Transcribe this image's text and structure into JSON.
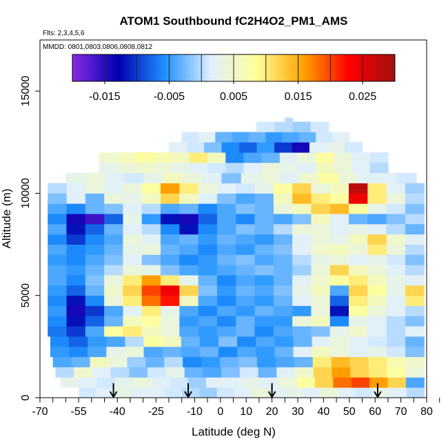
{
  "chart_data": {
    "type": "heatmap",
    "title": "ATOM1 Southbound fC2H4O2_PM1_AMS",
    "flights_label": "Flts: 2,3,4,5,6",
    "dates_label": "MMDD: 0801,0803,0806,0808,0812",
    "xlabel": "Latitude (deg N)",
    "ylabel": "Altitude (m)",
    "xlim": [
      -70,
      80
    ],
    "ylim": [
      0,
      17500
    ],
    "x_ticks": [
      -70,
      -55,
      -40,
      -25,
      -10,
      0,
      10,
      20,
      30,
      40,
      50,
      60,
      70,
      80
    ],
    "x_tick_labels": [
      "-70",
      "-55",
      "-40",
      "-25",
      "-10",
      "0",
      "10",
      "20",
      "30",
      "40",
      "50",
      "60",
      "70",
      "80"
    ],
    "x_minor_ticks": [
      -70,
      -65,
      -60,
      -55,
      -50,
      -45,
      -40,
      -35,
      -30,
      -25,
      -20,
      -15,
      -10,
      -5,
      0,
      5,
      10,
      15,
      20,
      25,
      30,
      35,
      40,
      45,
      50,
      55,
      60,
      65,
      70,
      75,
      80,
      85
    ],
    "y_ticks": [
      0,
      5000,
      10000,
      15000
    ],
    "y_tick_labels": [
      "0",
      "5000",
      "10000",
      "15000"
    ],
    "colorbar": {
      "min": -0.02,
      "max": 0.03,
      "tick_values": [
        -0.015,
        -0.005,
        0.005,
        0.015,
        0.025
      ],
      "tick_labels": [
        "-0.015",
        "-0.005",
        "0.005",
        "0.015",
        "0.025"
      ],
      "colors": [
        "#8a2be2",
        "#0000b0",
        "#1e90ff",
        "#dfefff",
        "#ffff99",
        "#ffa500",
        "#ff0000",
        "#a01010"
      ]
    },
    "arrows_latitude": [
      -41.5,
      -12.5,
      20,
      61
    ],
    "altitude_bands": [
      {
        "alt": [
          0,
          500
        ],
        "lat": [
          -55,
          79
        ],
        "vals": [
          0.001,
          0.002,
          0.003,
          0.002,
          0.002,
          0.001,
          0.0,
          -0.001,
          0.001,
          0.002,
          0.004,
          0.002,
          0.003,
          0.002,
          0.004,
          0.002,
          0.001,
          0.003,
          0.002,
          0.0
        ]
      },
      {
        "alt": [
          500,
          1000
        ],
        "lat": [
          -62,
          79
        ],
        "vals": [
          0.003,
          0.002,
          0.001,
          0.003,
          0.004,
          0.002,
          0.001,
          -0.001,
          0.002,
          0.002,
          0.003,
          0.002,
          0.004,
          0.008,
          0.012,
          0.018,
          0.02,
          0.016,
          0.012,
          -0.004
        ]
      },
      {
        "alt": [
          1000,
          1500
        ],
        "lat": [
          -64,
          79
        ],
        "vals": [
          0.0,
          0.005,
          0.002,
          0.0,
          -0.002,
          0.001,
          0.003,
          -0.003,
          -0.004,
          -0.002,
          0.001,
          -0.003,
          0.002,
          0.005,
          0.012,
          0.016,
          0.012,
          0.01,
          0.008,
          0.004
        ]
      },
      {
        "alt": [
          1500,
          2000
        ],
        "lat": [
          -65,
          79
        ],
        "vals": [
          -0.004,
          -0.003,
          0.006,
          0.004,
          -0.001,
          -0.003,
          0.0,
          -0.006,
          -0.005,
          -0.003,
          -0.002,
          -0.005,
          -0.004,
          -0.003,
          0.01,
          0.014,
          0.012,
          0.01,
          0.007,
          0.005
        ]
      },
      {
        "alt": [
          2000,
          2500
        ],
        "lat": [
          -66,
          79
        ],
        "vals": [
          -0.005,
          -0.006,
          -0.004,
          0.003,
          0.004,
          -0.004,
          -0.003,
          -0.004,
          -0.003,
          -0.006,
          -0.004,
          -0.005,
          -0.003,
          0.002,
          0.006,
          0.004,
          0.002,
          0.003,
          0.001,
          -0.002
        ]
      },
      {
        "alt": [
          2500,
          3000
        ],
        "lat": [
          -66,
          79
        ],
        "vals": [
          -0.006,
          -0.008,
          -0.005,
          -0.004,
          0.0,
          0.008,
          0.006,
          -0.003,
          -0.005,
          -0.002,
          -0.006,
          -0.004,
          -0.005,
          -0.003,
          0.002,
          0.004,
          0.002,
          0.001,
          0.0,
          -0.003
        ]
      },
      {
        "alt": [
          3000,
          3500
        ],
        "lat": [
          -67,
          79
        ],
        "vals": [
          -0.007,
          -0.01,
          -0.004,
          0.008,
          0.01,
          0.006,
          0.004,
          -0.004,
          -0.005,
          -0.004,
          -0.003,
          -0.006,
          -0.004,
          -0.003,
          -0.002,
          0.003,
          0.005,
          0.002,
          0.0,
          0.002
        ]
      },
      {
        "alt": [
          3500,
          4000
        ],
        "lat": [
          -67,
          79
        ],
        "vals": [
          -0.006,
          -0.012,
          -0.008,
          -0.003,
          0.006,
          0.008,
          0.004,
          -0.005,
          -0.004,
          -0.006,
          -0.003,
          -0.005,
          -0.005,
          0.004,
          0.006,
          -0.006,
          0.003,
          0.002,
          0.0,
          -0.002
        ]
      },
      {
        "alt": [
          4000,
          4500
        ],
        "lat": [
          -67,
          79
        ],
        "vals": [
          -0.005,
          -0.014,
          -0.01,
          -0.004,
          0.002,
          0.01,
          0.003,
          -0.004,
          -0.006,
          -0.004,
          -0.005,
          -0.003,
          -0.004,
          -0.005,
          0.004,
          -0.012,
          0.008,
          0.004,
          0.002,
          0.0
        ]
      },
      {
        "alt": [
          4500,
          5000
        ],
        "lat": [
          -67,
          79
        ],
        "vals": [
          -0.006,
          -0.012,
          -0.006,
          0.004,
          0.01,
          0.018,
          0.022,
          0.006,
          -0.004,
          -0.006,
          -0.004,
          -0.005,
          -0.003,
          0.002,
          0.004,
          -0.008,
          0.01,
          0.006,
          0.002,
          0.01
        ]
      },
      {
        "alt": [
          5000,
          5500
        ],
        "lat": [
          -67,
          79
        ],
        "vals": [
          -0.005,
          -0.008,
          -0.003,
          0.005,
          0.012,
          0.02,
          0.024,
          0.012,
          -0.002,
          -0.005,
          -0.003,
          -0.004,
          -0.002,
          0.003,
          0.006,
          -0.004,
          0.012,
          0.008,
          0.003,
          0.012
        ]
      },
      {
        "alt": [
          5500,
          6000
        ],
        "lat": [
          -67,
          79
        ],
        "vals": [
          -0.004,
          -0.006,
          -0.002,
          0.004,
          0.01,
          0.016,
          0.01,
          0.003,
          -0.003,
          -0.006,
          -0.004,
          -0.005,
          -0.003,
          0.002,
          0.005,
          0.008,
          0.01,
          0.006,
          0.003,
          0.002
        ]
      },
      {
        "alt": [
          6000,
          6500
        ],
        "lat": [
          -67,
          79
        ],
        "vals": [
          -0.004,
          -0.005,
          -0.003,
          0.0,
          0.004,
          0.003,
          -0.002,
          -0.004,
          -0.005,
          -0.004,
          -0.003,
          -0.002,
          -0.003,
          -0.001,
          0.004,
          0.012,
          0.006,
          0.004,
          0.002,
          0.0
        ]
      },
      {
        "alt": [
          6500,
          7000
        ],
        "lat": [
          -67,
          79
        ],
        "vals": [
          -0.005,
          -0.006,
          -0.004,
          -0.002,
          0.002,
          -0.002,
          -0.004,
          -0.006,
          -0.005,
          -0.003,
          -0.002,
          -0.004,
          -0.003,
          0.0,
          0.003,
          0.004,
          0.002,
          0.003,
          0.001,
          -0.002
        ]
      },
      {
        "alt": [
          7000,
          7500
        ],
        "lat": [
          -67,
          79
        ],
        "vals": [
          -0.004,
          -0.006,
          -0.005,
          -0.003,
          0.003,
          0.004,
          -0.003,
          -0.004,
          -0.006,
          -0.004,
          -0.005,
          -0.003,
          -0.002,
          0.002,
          0.005,
          0.006,
          0.004,
          0.01,
          0.004,
          0.0
        ]
      },
      {
        "alt": [
          7500,
          8000
        ],
        "lat": [
          -67,
          79
        ],
        "vals": [
          -0.006,
          -0.01,
          -0.006,
          -0.004,
          0.004,
          0.002,
          -0.004,
          -0.003,
          -0.005,
          -0.003,
          -0.004,
          -0.005,
          -0.003,
          0.002,
          0.004,
          0.003,
          0.006,
          0.012,
          0.005,
          0.002
        ]
      },
      {
        "alt": [
          8000,
          8500
        ],
        "lat": [
          -67,
          79
        ],
        "vals": [
          -0.004,
          -0.012,
          -0.008,
          -0.003,
          0.002,
          0.0,
          -0.006,
          -0.012,
          -0.006,
          -0.004,
          -0.002,
          -0.003,
          0.0,
          0.004,
          0.004,
          0.002,
          0.003,
          0.002,
          0.0,
          -0.003
        ]
      },
      {
        "alt": [
          8500,
          9000
        ],
        "lat": [
          -67,
          79
        ],
        "vals": [
          -0.006,
          -0.014,
          -0.016,
          -0.008,
          0.003,
          -0.005,
          -0.012,
          -0.014,
          -0.008,
          -0.004,
          -0.006,
          -0.003,
          -0.004,
          -0.002,
          0.006,
          0.002,
          -0.003,
          -0.004,
          -0.002,
          0.0
        ]
      },
      {
        "alt": [
          9000,
          9500
        ],
        "lat": [
          -67,
          79
        ],
        "vals": [
          -0.004,
          -0.006,
          -0.003,
          -0.002,
          0.002,
          0.0,
          -0.004,
          -0.003,
          -0.006,
          -0.004,
          -0.002,
          -0.003,
          0.004,
          0.006,
          0.012,
          0.014,
          0.008,
          0.003,
          0.001,
          -0.002
        ]
      },
      {
        "alt": [
          9500,
          10000
        ],
        "lat": [
          -67,
          79
        ],
        "vals": [
          -0.002,
          0.002,
          -0.003,
          0.004,
          0.003,
          0.006,
          0.012,
          0.006,
          0.002,
          -0.002,
          -0.004,
          -0.003,
          0.006,
          0.014,
          0.01,
          0.008,
          0.024,
          0.01,
          0.004,
          0.0
        ]
      },
      {
        "alt": [
          10000,
          10500
        ],
        "lat": [
          -67,
          79
        ],
        "vals": [
          0.0,
          0.002,
          0.004,
          0.002,
          0.004,
          0.008,
          0.016,
          0.01,
          0.004,
          0.002,
          0.001,
          0.003,
          0.008,
          0.012,
          0.004,
          0.006,
          0.028,
          0.01,
          0.002,
          -0.001
        ]
      },
      {
        "alt": [
          10500,
          11000
        ],
        "lat": [
          -60,
          76
        ],
        "vals": [
          0.003,
          0.004,
          0.002,
          0.001,
          0.003,
          0.006,
          0.004,
          0.002,
          -0.002,
          0.003,
          0.004,
          0.002,
          0.005,
          0.008,
          0.004,
          0.002,
          0.002,
          0.001
        ]
      },
      {
        "alt": [
          11000,
          11500
        ],
        "lat": [
          -47,
          65
        ],
        "vals": [
          0.003,
          0.004,
          0.005,
          0.004,
          0.003,
          0.002,
          0.001,
          0.0,
          0.002,
          0.004,
          0.003,
          0.002,
          0.006,
          0.004,
          0.002,
          0.0
        ]
      },
      {
        "alt": [
          11500,
          12000
        ],
        "lat": [
          -47,
          65
        ],
        "vals": [
          0.005,
          0.006,
          0.008,
          0.007,
          0.006,
          0.01,
          0.006,
          -0.006,
          -0.004,
          -0.003,
          0.002,
          0.004,
          0.008,
          0.004,
          0.002,
          0.001
        ]
      },
      {
        "alt": [
          12000,
          12500
        ],
        "lat": [
          -20,
          55
        ],
        "vals": [
          0.002,
          0.001,
          -0.002,
          -0.006,
          -0.008,
          -0.005,
          -0.01,
          -0.014,
          0.002,
          0.003,
          0.001
        ]
      },
      {
        "alt": [
          12500,
          13000
        ],
        "lat": [
          -15,
          50
        ],
        "vals": [
          0.001,
          0.002,
          -0.003,
          -0.004,
          -0.003,
          -0.005,
          -0.004,
          -0.003,
          0.001,
          0.002
        ]
      },
      {
        "alt": [
          13000,
          13500
        ],
        "lat": [
          14,
          42
        ],
        "vals": [
          0.001,
          0.0,
          -0.001,
          0.001
        ]
      },
      {
        "alt": [
          13500,
          13700
        ],
        "lat": [
          25,
          28
        ],
        "vals": [
          0.0
        ]
      }
    ]
  }
}
